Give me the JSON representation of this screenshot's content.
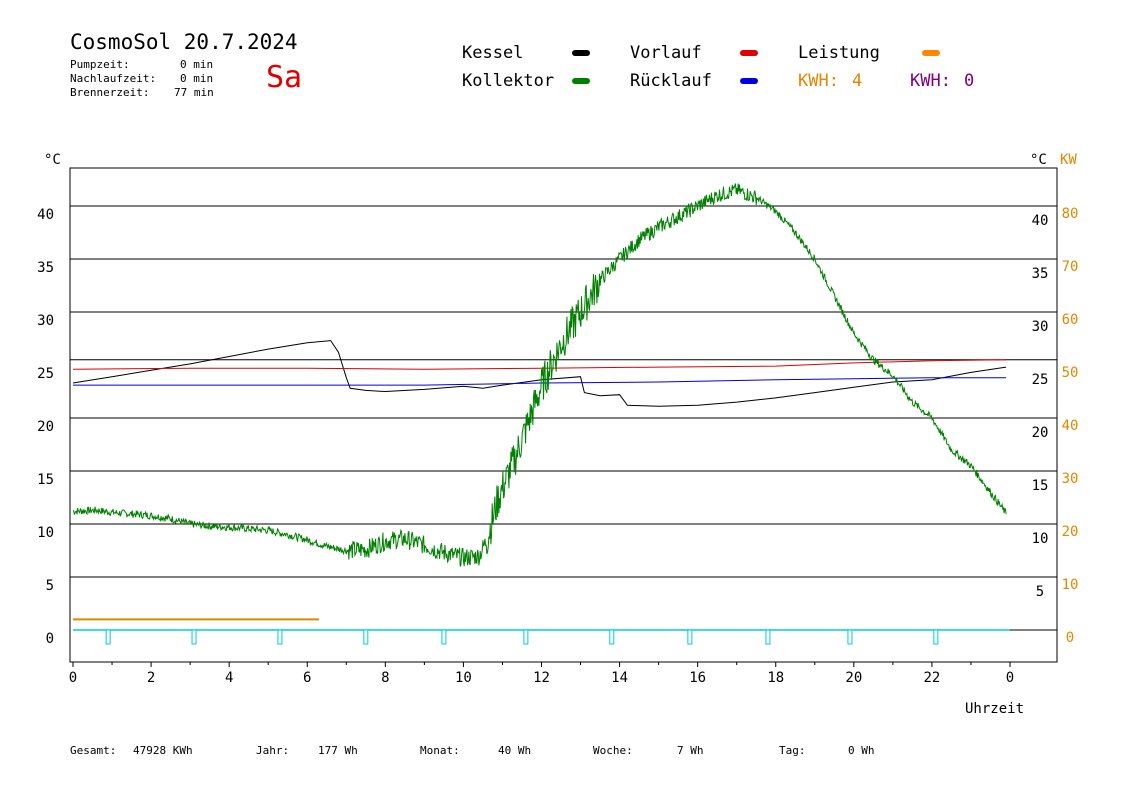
{
  "header": {
    "title": "CosmoSol 20.7.2024",
    "day": "Sa",
    "stats": [
      {
        "label": "Pumpzeit:",
        "value": "0 min"
      },
      {
        "label": "Nachlaufzeit:",
        "value": "0 min"
      },
      {
        "label": "Brennerzeit:",
        "value": "77 min"
      }
    ]
  },
  "legend": {
    "kessel": {
      "label": "Kessel",
      "color": "#000000"
    },
    "vorlauf": {
      "label": "Vorlauf",
      "color": "#e00000"
    },
    "leistung": {
      "label": "Leistung",
      "color": "#ff8800"
    },
    "kollektor": {
      "label": "Kollektor",
      "color": "#008000"
    },
    "ruecklauf": {
      "label": "Rücklauf",
      "color": "#0000e0"
    },
    "kwh1": {
      "label": "KWH:",
      "value": "4",
      "color": "#e08800"
    },
    "kwh2": {
      "label": "KWH:",
      "value": "0",
      "color": "#800080"
    }
  },
  "footer": {
    "gesamt": {
      "label": "Gesamt:",
      "value": "47928 KWh"
    },
    "jahr": {
      "label": "Jahr:",
      "value": "177 Wh"
    },
    "monat": {
      "label": "Monat:",
      "value": "40 Wh"
    },
    "woche": {
      "label": "Woche:",
      "value": "7 Wh"
    },
    "tag": {
      "label": "Tag:",
      "value": "0 Wh"
    }
  },
  "chart_data": {
    "type": "line",
    "xlabel": "Uhrzeit",
    "ylabel_left": "°C",
    "ylabel_right_c": "°C",
    "ylabel_right_kw": "KW",
    "xlim": [
      0,
      24
    ],
    "ylim": [
      -3,
      46
    ],
    "x_ticks": [
      "0",
      "2",
      "4",
      "6",
      "8",
      "10",
      "12",
      "14",
      "16",
      "18",
      "20",
      "22",
      "0"
    ],
    "y_ticks_left": [
      "0",
      "5",
      "10",
      "15",
      "20",
      "25",
      "30",
      "35",
      "40"
    ],
    "y_ticks_right_c": [
      "5",
      "10",
      "15",
      "20",
      "25",
      "30",
      "35",
      "40"
    ],
    "y_ticks_right_kw": [
      "0",
      "10",
      "20",
      "30",
      "40",
      "50",
      "60",
      "70",
      "80"
    ],
    "grid_y": [
      5,
      10,
      15,
      20,
      25.5,
      30,
      35,
      40
    ],
    "series": [
      {
        "name": "Kessel",
        "color": "#000000",
        "points": [
          [
            0,
            23.3
          ],
          [
            1,
            23.9
          ],
          [
            2,
            24.5
          ],
          [
            3,
            25.1
          ],
          [
            4,
            25.8
          ],
          [
            5,
            26.5
          ],
          [
            6,
            27.1
          ],
          [
            6.6,
            27.3
          ],
          [
            6.8,
            26.2
          ],
          [
            7,
            23.8
          ],
          [
            7.1,
            22.8
          ],
          [
            7.5,
            22.6
          ],
          [
            8,
            22.5
          ],
          [
            9,
            22.7
          ],
          [
            10,
            23.0
          ],
          [
            10.5,
            22.8
          ],
          [
            11,
            23.1
          ],
          [
            12,
            23.6
          ],
          [
            13,
            23.9
          ],
          [
            13.1,
            22.4
          ],
          [
            13.5,
            22.1
          ],
          [
            14,
            22.2
          ],
          [
            14.2,
            21.2
          ],
          [
            15,
            21.1
          ],
          [
            16,
            21.2
          ],
          [
            17,
            21.5
          ],
          [
            18,
            21.9
          ],
          [
            19,
            22.4
          ],
          [
            20,
            22.9
          ],
          [
            21,
            23.4
          ],
          [
            22,
            23.6
          ],
          [
            23,
            24.3
          ],
          [
            23.9,
            24.8
          ]
        ]
      },
      {
        "name": "Vorlauf",
        "color": "#e00000",
        "points": [
          [
            0,
            24.6
          ],
          [
            3,
            24.7
          ],
          [
            6,
            24.7
          ],
          [
            9,
            24.6
          ],
          [
            12,
            24.7
          ],
          [
            15,
            24.8
          ],
          [
            18,
            24.9
          ],
          [
            20,
            25.2
          ],
          [
            22,
            25.4
          ],
          [
            23.9,
            25.5
          ]
        ]
      },
      {
        "name": "Rücklauf",
        "color": "#0000e0",
        "points": [
          [
            0,
            23.1
          ],
          [
            3,
            23.1
          ],
          [
            6,
            23.1
          ],
          [
            9,
            23.1
          ],
          [
            12,
            23.3
          ],
          [
            15,
            23.4
          ],
          [
            18,
            23.6
          ],
          [
            20,
            23.7
          ],
          [
            22,
            23.8
          ],
          [
            23.9,
            23.8
          ]
        ]
      },
      {
        "name": "Kollektor",
        "color": "#008000",
        "noise": true,
        "points": [
          [
            0,
            11.2
          ],
          [
            0.6,
            11.3
          ],
          [
            1,
            11.1
          ],
          [
            2,
            10.8
          ],
          [
            2.5,
            10.5
          ],
          [
            3,
            10.0
          ],
          [
            3.5,
            9.8
          ],
          [
            4,
            9.7
          ],
          [
            5,
            9.4
          ],
          [
            5.5,
            9.0
          ],
          [
            6,
            8.5
          ],
          [
            6.5,
            7.9
          ],
          [
            7,
            7.5
          ],
          [
            7.5,
            7.6
          ],
          [
            8,
            8.4
          ],
          [
            8.5,
            8.6
          ],
          [
            9,
            8.0
          ],
          [
            9.5,
            7.3
          ],
          [
            10,
            6.8
          ],
          [
            10.4,
            7.0
          ],
          [
            10.6,
            8.5
          ],
          [
            10.9,
            12.5
          ],
          [
            11.3,
            16.0
          ],
          [
            11.7,
            20.0
          ],
          [
            12,
            23.0
          ],
          [
            12.5,
            27.0
          ],
          [
            13,
            30.0
          ],
          [
            13.5,
            33.0
          ],
          [
            14,
            35.0
          ],
          [
            14.5,
            36.8
          ],
          [
            15,
            38.0
          ],
          [
            15.5,
            39.0
          ],
          [
            16,
            40.0
          ],
          [
            16.5,
            41.0
          ],
          [
            17,
            41.5
          ],
          [
            17.5,
            40.8
          ],
          [
            18,
            39.5
          ],
          [
            18.5,
            37.5
          ],
          [
            19,
            35.0
          ],
          [
            19.5,
            31.5
          ],
          [
            20,
            28.0
          ],
          [
            20.5,
            25.5
          ],
          [
            21,
            24.0
          ],
          [
            21.5,
            21.5
          ],
          [
            22,
            20.0
          ],
          [
            22.5,
            17.0
          ],
          [
            23,
            15.5
          ],
          [
            23.5,
            13.0
          ],
          [
            23.9,
            11.0
          ]
        ]
      },
      {
        "name": "Leistung",
        "color": "#e08800",
        "axis": "kw",
        "points": [
          [
            0,
            1.0
          ],
          [
            6.3,
            1.0
          ]
        ]
      }
    ],
    "pump_pulses_x": [
      0.9,
      3.1,
      5.3,
      7.5,
      9.5,
      11.6,
      13.8,
      15.8,
      17.8,
      19.9,
      22.1
    ],
    "pump_color": "#00d0d0"
  }
}
